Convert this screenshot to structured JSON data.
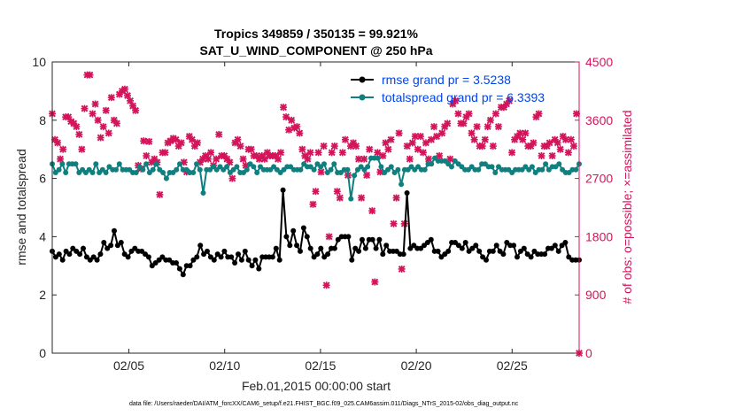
{
  "chart_data": {
    "type": "line",
    "title": "Tropics 349859 / 350135 = 99.921%",
    "subtitle": "SAT_U_WIND_COMPONENT @ 250 hPa",
    "xlabel": "Feb.01,2015 00:00:00 start",
    "ylabel_left": "rmse and totalspread",
    "ylabel_right": "# of obs: o=possible; ×=assimilated",
    "footer": "data file: /Users/raeder/DAI/ATM_forcXX/CAM6_setup/f.e21.FHIST_BGC.f09_025.CAM6assim.011/Diags_NTrS_2015-02/obs_diag_output.nc",
    "x_unit": "day of Feb 2015",
    "xlim": [
      1,
      28.5
    ],
    "ylim_left": [
      0,
      10
    ],
    "ylim_right": [
      0,
      4500
    ],
    "x_ticks": [
      5,
      10,
      15,
      20,
      25
    ],
    "x_tick_labels": [
      "02/05",
      "02/10",
      "02/15",
      "02/20",
      "02/25"
    ],
    "y_left_ticks": [
      "0",
      "2",
      "4",
      "6",
      "8",
      "10"
    ],
    "y_right_ticks": [
      "0",
      "900",
      "1800",
      "2700",
      "3600",
      "4500"
    ],
    "colors": {
      "rmse": "#000000",
      "spread": "#0f7f7f",
      "obs": "#d4145a",
      "legend_text": "#0044ee",
      "right_axis": "#d4145a"
    },
    "legend": [
      {
        "key": "rmse",
        "label": "rmse grand pr = 3.5238"
      },
      {
        "key": "spread",
        "label": "totalspread grand pr = 6.3393"
      }
    ],
    "series": [
      {
        "name": "rmse",
        "values": [
          3.5,
          3.3,
          3.4,
          3.2,
          3.5,
          3.4,
          3.6,
          3.5,
          3.4,
          3.6,
          3.3,
          3.2,
          3.3,
          3.2,
          3.4,
          3.8,
          3.6,
          3.7,
          4.2,
          3.7,
          3.8,
          3.4,
          3.3,
          3.5,
          3.6,
          3.5,
          3.5,
          3.4,
          3.3,
          3.0,
          3.1,
          3.2,
          3.3,
          3.2,
          3.2,
          3.1,
          3.1,
          2.9,
          2.7,
          3.0,
          3.0,
          3.2,
          3.3,
          3.7,
          3.4,
          3.5,
          3.3,
          3.2,
          3.4,
          3.3,
          3.5,
          3.3,
          3.3,
          3.1,
          3.4,
          3.2,
          3.5,
          3.2,
          3.0,
          3.2,
          2.9,
          3.3,
          3.3,
          3.3,
          3.3,
          3.6,
          3.2,
          5.6,
          4.0,
          3.7,
          4.2,
          3.7,
          3.5,
          4.3,
          4.0,
          3.6,
          3.3,
          3.4,
          3.6,
          3.3,
          3.4,
          3.6,
          3.6,
          3.9,
          4.0,
          4.0,
          4.0,
          3.2,
          3.6,
          3.5,
          3.9,
          3.6,
          3.9,
          3.9,
          3.6,
          3.9,
          3.4,
          3.7,
          3.5,
          3.5,
          3.5,
          3.4,
          3.4,
          5.5,
          3.6,
          3.7,
          3.6,
          3.6,
          3.7,
          3.8,
          3.9,
          3.5,
          3.5,
          3.3,
          3.4,
          3.5,
          3.8,
          3.8,
          3.7,
          3.6,
          3.8,
          3.5,
          3.6,
          3.7,
          3.5,
          3.3,
          3.2,
          3.5,
          3.5,
          3.7,
          3.5,
          3.4,
          3.8,
          3.7,
          3.7,
          3.3,
          3.5,
          3.6,
          3.4,
          3.3,
          3.5,
          3.4,
          3.4,
          3.4,
          3.6,
          3.6,
          3.7,
          3.5,
          3.7,
          3.8,
          3.3,
          3.2,
          3.2,
          3.2
        ]
      },
      {
        "name": "totalspread",
        "values": [
          6.5,
          6.2,
          6.3,
          6.5,
          6.2,
          6.5,
          6.5,
          6.5,
          6.2,
          6.3,
          6.2,
          6.3,
          6.2,
          6.5,
          6.2,
          6.3,
          6.2,
          6.4,
          6.3,
          6.3,
          6.5,
          6.3,
          6.3,
          6.3,
          6.2,
          6.2,
          6.4,
          6.3,
          6.5,
          6.2,
          6.3,
          6.5,
          6.3,
          6.2,
          6.0,
          6.2,
          6.2,
          6.3,
          6.5,
          6.3,
          6.3,
          6.2,
          6.2,
          6.5,
          6.3,
          5.5,
          6.3,
          6.3,
          6.4,
          6.3,
          6.4,
          6.3,
          6.4,
          6.2,
          6.3,
          6.4,
          6.2,
          6.2,
          6.3,
          6.5,
          6.4,
          6.2,
          6.4,
          6.3,
          6.3,
          6.3,
          6.4,
          6.3,
          6.2,
          6.3,
          6.4,
          6.4,
          6.3,
          6.3,
          6.3,
          6.5,
          6.4,
          6.4,
          6.3,
          6.5,
          6.4,
          6.5,
          6.2,
          6.3,
          6.5,
          6.2,
          6.2,
          6.3,
          6.3,
          5.3,
          6.1,
          6.3,
          6.4,
          6.3,
          6.4,
          6.7,
          6.7,
          6.7,
          6.4,
          6.2,
          6.3,
          6.4,
          6.2,
          6.3,
          5.8,
          6.3,
          6.3,
          6.4,
          6.3,
          6.4,
          6.3,
          6.3,
          6.5,
          6.5,
          6.7,
          6.6,
          6.6,
          6.6,
          6.5,
          6.4,
          6.6,
          6.5,
          6.4,
          6.3,
          6.3,
          6.4,
          6.3,
          6.3,
          6.5,
          6.5,
          6.4,
          6.4,
          6.2,
          6.4,
          6.3,
          6.3,
          6.3,
          6.2,
          6.3,
          6.3,
          6.3,
          6.4,
          6.3,
          6.4,
          6.2,
          6.3,
          6.3,
          6.5,
          6.3,
          6.4,
          6.4,
          6.5,
          6.3,
          6.2,
          6.2,
          6.3,
          6.3,
          6.5
        ]
      },
      {
        "name": "obs_assimilated",
        "values": [
          3700,
          3300,
          3250,
          3000,
          3150,
          3650,
          3650,
          3580,
          3550,
          3500,
          3380,
          3150,
          3780,
          4300,
          4300,
          3700,
          3850,
          3600,
          3330,
          3500,
          3750,
          3400,
          3950,
          3600,
          3550,
          4000,
          4050,
          4080,
          3980,
          3900,
          3820,
          3750,
          2900,
          2850,
          3280,
          3050,
          3270,
          2950,
          3000,
          2950,
          2450,
          3100,
          3100,
          3250,
          3280,
          3320,
          3300,
          3200,
          3250,
          2950,
          2800,
          3350,
          3300,
          3200,
          3250,
          2950,
          3000,
          3050,
          3000,
          3100,
          2900,
          3000,
          3380,
          3050,
          3050,
          3000,
          2950,
          2700,
          3250,
          3300,
          3200,
          3000,
          2900,
          3150,
          3150,
          3050,
          3050,
          3000,
          3050,
          3000,
          3100,
          3050,
          3050,
          3050,
          3000,
          3100,
          3800,
          3650,
          3450,
          3600,
          3480,
          3500,
          3400,
          3150,
          3050,
          3000,
          3100,
          2300,
          2500,
          3100,
          2800,
          3200,
          1050,
          1800,
          3100,
          3200,
          2500,
          2400,
          3100,
          3300,
          2750,
          3200,
          3250,
          3200,
          3000,
          2400,
          3000,
          2750,
          3150,
          2200,
          1100,
          3100,
          2800,
          3050,
          3250,
          3150,
          3300,
          2000,
          2400,
          3400,
          1300,
          2000,
          3200,
          3000,
          3250,
          3350,
          3150,
          3350,
          3100,
          3250,
          3000,
          3300,
          3500,
          3350,
          3050,
          3400,
          3500,
          3550,
          3000,
          3850,
          3900,
          3700,
          3550,
          3550,
          3650,
          3700,
          3400,
          3300,
          3500,
          3200,
          3200,
          3300,
          3500,
          3600,
          3200,
          3700,
          3500,
          3800,
          3800,
          3850,
          3900,
          3100,
          3300,
          3350,
          3400,
          3300,
          3400,
          3200,
          3200,
          3250,
          3650,
          3700,
          3050,
          3200,
          3200,
          3250,
          3050,
          3300,
          3250,
          3150,
          3350,
          3300,
          3100,
          3300,
          3200,
          3700,
          0
        ]
      }
    ]
  }
}
